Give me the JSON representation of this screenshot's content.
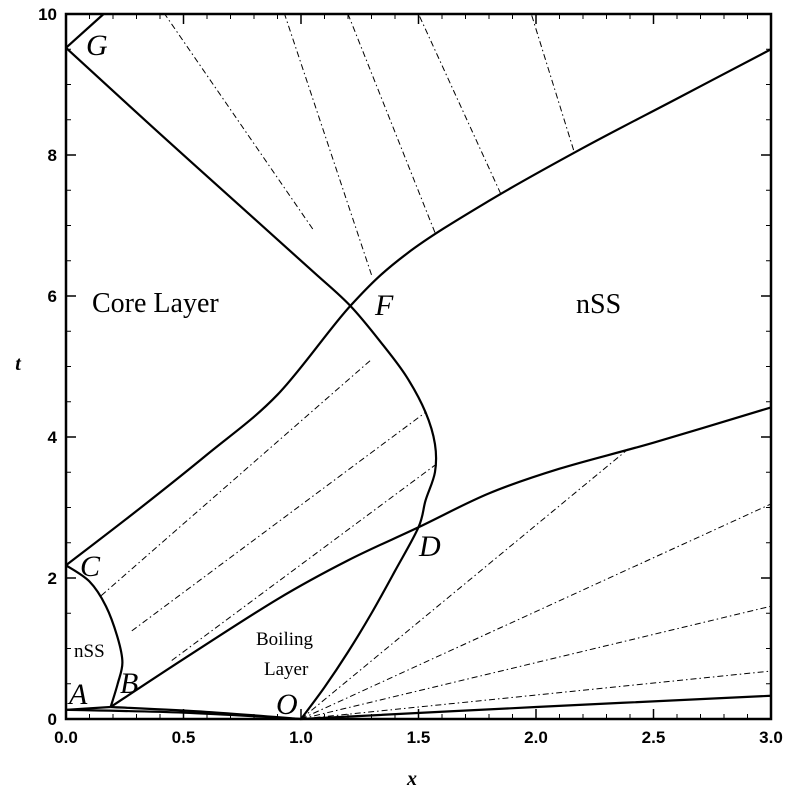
{
  "chart_data": {
    "type": "line",
    "xlabel": "x",
    "ylabel": "t",
    "xlim": [
      0,
      3
    ],
    "ylim": [
      0,
      10
    ],
    "x_ticks": [
      "0.0",
      "0.5",
      "1.0",
      "1.5",
      "2.0",
      "2.5",
      "3.0"
    ],
    "y_ticks": [
      "0",
      "2",
      "4",
      "6",
      "8",
      "10"
    ],
    "grid": false,
    "legend": "none",
    "points": [
      {
        "label": "G",
        "x": 0.0,
        "y": 9.52
      },
      {
        "label": "F",
        "x": 1.21,
        "y": 5.86
      },
      {
        "label": "C",
        "x": 0.0,
        "y": 2.18
      },
      {
        "label": "D",
        "x": 1.5,
        "y": 2.72
      },
      {
        "label": "B",
        "x": 0.19,
        "y": 0.17
      },
      {
        "label": "A",
        "x": 0.0,
        "y": 0.13
      },
      {
        "label": "O",
        "x": 1.0,
        "y": 0.0
      }
    ],
    "region_labels": [
      "Core Layer",
      "nSS",
      "nSS",
      "Boiling",
      "Layer"
    ],
    "solid_curves": [
      {
        "id": "C-F-upper",
        "points": [
          [
            0.0,
            2.18
          ],
          [
            0.3,
            2.95
          ],
          [
            0.6,
            3.75
          ],
          [
            0.9,
            4.6
          ],
          [
            1.21,
            5.86
          ],
          [
            1.45,
            6.6
          ],
          [
            1.8,
            7.35
          ],
          [
            2.2,
            8.1
          ],
          [
            2.6,
            8.8
          ],
          [
            3.0,
            9.5
          ]
        ]
      },
      {
        "id": "G-F-D-O",
        "points": [
          [
            0.0,
            9.52
          ],
          [
            0.4,
            8.3
          ],
          [
            0.8,
            7.1
          ],
          [
            1.05,
            6.35
          ],
          [
            1.21,
            5.86
          ],
          [
            1.35,
            5.3
          ],
          [
            1.45,
            4.85
          ],
          [
            1.53,
            4.35
          ],
          [
            1.57,
            3.9
          ],
          [
            1.57,
            3.5
          ],
          [
            1.53,
            3.1
          ],
          [
            1.5,
            2.72
          ],
          [
            1.4,
            2.1
          ],
          [
            1.3,
            1.5
          ],
          [
            1.2,
            0.95
          ],
          [
            1.1,
            0.45
          ],
          [
            1.0,
            0.0
          ]
        ]
      },
      {
        "id": "G-top",
        "points": [
          [
            0.0,
            9.52
          ],
          [
            0.16,
            10.0
          ]
        ]
      },
      {
        "id": "C-B",
        "points": [
          [
            0.0,
            2.18
          ],
          [
            0.1,
            1.95
          ],
          [
            0.17,
            1.6
          ],
          [
            0.22,
            1.15
          ],
          [
            0.24,
            0.8
          ],
          [
            0.22,
            0.5
          ],
          [
            0.19,
            0.17
          ]
        ]
      },
      {
        "id": "B-D-upper",
        "points": [
          [
            0.19,
            0.17
          ],
          [
            0.5,
            0.85
          ],
          [
            0.9,
            1.7
          ],
          [
            1.2,
            2.25
          ],
          [
            1.5,
            2.72
          ],
          [
            1.8,
            3.2
          ],
          [
            2.1,
            3.55
          ],
          [
            2.5,
            3.92
          ],
          [
            3.0,
            4.42
          ]
        ]
      },
      {
        "id": "A-B",
        "points": [
          [
            0.0,
            0.13
          ],
          [
            0.19,
            0.17
          ]
        ]
      },
      {
        "id": "A-O",
        "points": [
          [
            0.0,
            0.13
          ],
          [
            0.5,
            0.09
          ],
          [
            1.0,
            0.0
          ]
        ]
      },
      {
        "id": "B-O",
        "points": [
          [
            0.19,
            0.17
          ],
          [
            0.6,
            0.1
          ],
          [
            1.0,
            0.0
          ]
        ]
      },
      {
        "id": "O-bottom",
        "points": [
          [
            1.0,
            0.0
          ],
          [
            2.0,
            0.17
          ],
          [
            3.0,
            0.33
          ]
        ]
      }
    ],
    "dashdot_lines": [
      [
        [
          1.05,
          6.95
        ],
        [
          0.42,
          10.0
        ]
      ],
      [
        [
          1.3,
          6.3
        ],
        [
          0.93,
          10.0
        ]
      ],
      [
        [
          1.57,
          6.9
        ],
        [
          1.2,
          10.0
        ]
      ],
      [
        [
          1.85,
          7.45
        ],
        [
          1.5,
          10.0
        ]
      ],
      [
        [
          2.16,
          8.07
        ],
        [
          1.98,
          10.0
        ]
      ],
      [
        [
          0.15,
          1.75
        ],
        [
          1.3,
          5.1
        ]
      ],
      [
        [
          0.28,
          1.25
        ],
        [
          1.53,
          4.35
        ]
      ],
      [
        [
          0.45,
          0.83
        ],
        [
          1.57,
          3.6
        ]
      ],
      [
        [
          1.0,
          0.0
        ],
        [
          2.4,
          3.85
        ]
      ],
      [
        [
          1.0,
          0.0
        ],
        [
          3.0,
          3.05
        ]
      ],
      [
        [
          1.0,
          0.0
        ],
        [
          3.0,
          1.6
        ]
      ],
      [
        [
          1.0,
          0.0
        ],
        [
          3.0,
          0.68
        ]
      ]
    ]
  }
}
